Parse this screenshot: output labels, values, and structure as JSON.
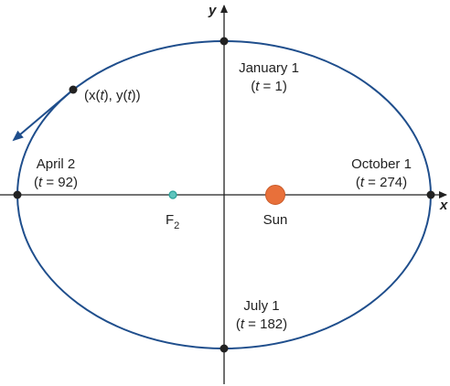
{
  "axes": {
    "x_label": "x",
    "y_label": "y"
  },
  "points": {
    "moving": "(x(t), y(t))",
    "moving_parts": [
      "(x(",
      "t",
      "), y(",
      "t",
      "))"
    ],
    "january": {
      "date": "January 1",
      "t_label": "(t = 1)",
      "t_value": "1"
    },
    "april": {
      "date": "April 2",
      "t_label": "(t = 92)",
      "t_value": "92"
    },
    "july": {
      "date": "July 1",
      "t_label": "(t = 182)",
      "t_value": "182"
    },
    "october": {
      "date": "October 1",
      "t_label": "(t = 274)",
      "t_value": "274"
    }
  },
  "focus": {
    "letter": "F",
    "subscript": "2",
    "color": "#2aa198"
  },
  "sun": {
    "label": "Sun",
    "color": "#e8703a"
  },
  "colors": {
    "orbit": "#1f4e8c",
    "axis": "#222222",
    "point": "#222222"
  }
}
